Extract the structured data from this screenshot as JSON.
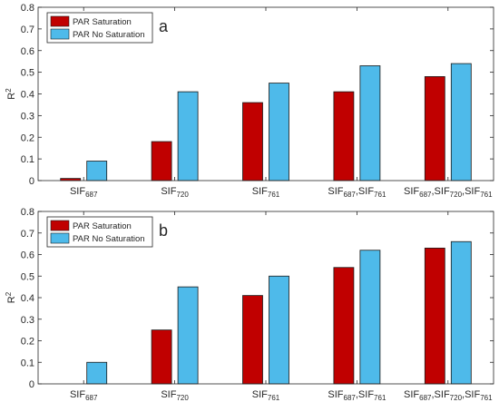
{
  "chart_data": [
    {
      "type": "bar",
      "panel_label": "a",
      "categories": [
        {
          "base": "SIF",
          "subs": [
            "687"
          ],
          "sep": ","
        },
        {
          "base": "SIF",
          "subs": [
            "720"
          ],
          "sep": ","
        },
        {
          "base": "SIF",
          "subs": [
            "761"
          ],
          "sep": ","
        },
        {
          "base": "SIF",
          "subs": [
            "687",
            "761"
          ],
          "sep": ","
        },
        {
          "base": "SIF",
          "subs": [
            "687",
            "720",
            "761"
          ],
          "sep": ","
        }
      ],
      "series": [
        {
          "name": "PAR Saturation",
          "color": "#c00000",
          "values": [
            0.01,
            0.18,
            0.36,
            0.41,
            0.48
          ]
        },
        {
          "name": "PAR No Saturation",
          "color": "#4ebaea",
          "values": [
            0.09,
            0.41,
            0.45,
            0.53,
            0.54
          ]
        }
      ],
      "ylabel": {
        "base": "R",
        "sup": "2"
      },
      "ylim": [
        0,
        0.8
      ],
      "yticks": [
        0,
        0.1,
        0.2,
        0.3,
        0.4,
        0.5,
        0.6,
        0.7,
        0.8
      ],
      "grid": false,
      "legend_position": "top-left"
    },
    {
      "type": "bar",
      "panel_label": "b",
      "categories": [
        {
          "base": "SIF",
          "subs": [
            "687"
          ],
          "sep": ","
        },
        {
          "base": "SIF",
          "subs": [
            "720"
          ],
          "sep": ","
        },
        {
          "base": "SIF",
          "subs": [
            "761"
          ],
          "sep": ","
        },
        {
          "base": "SIF",
          "subs": [
            "687",
            "761"
          ],
          "sep": ","
        },
        {
          "base": "SIF",
          "subs": [
            "687",
            "720",
            "761"
          ],
          "sep": ","
        }
      ],
      "series": [
        {
          "name": "PAR Saturation",
          "color": "#c00000",
          "values": [
            0.0,
            0.25,
            0.41,
            0.54,
            0.63
          ]
        },
        {
          "name": "PAR No Saturation",
          "color": "#4ebaea",
          "values": [
            0.1,
            0.45,
            0.5,
            0.62,
            0.66
          ]
        }
      ],
      "ylabel": {
        "base": "R",
        "sup": "2"
      },
      "ylim": [
        0,
        0.8
      ],
      "yticks": [
        0,
        0.1,
        0.2,
        0.3,
        0.4,
        0.5,
        0.6,
        0.7,
        0.8
      ],
      "grid": false,
      "legend_position": "top-left"
    }
  ]
}
